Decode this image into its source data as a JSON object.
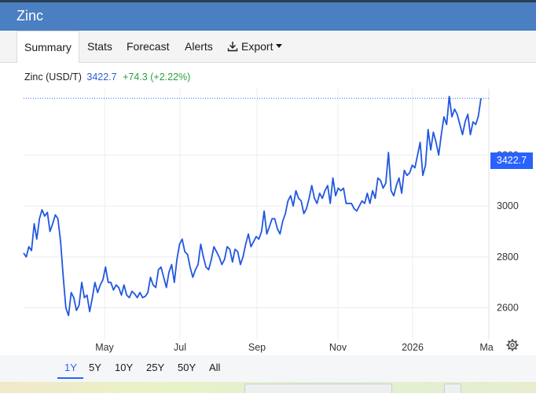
{
  "window": {
    "title": "Zinc"
  },
  "tabs": [
    {
      "label": "Summary",
      "active": true
    },
    {
      "label": "Stats"
    },
    {
      "label": "Forecast"
    },
    {
      "label": "Alerts"
    },
    {
      "label": "Export",
      "icon": "download-icon",
      "dropdown": true
    }
  ],
  "legend": {
    "name": "Zinc (USD/T)",
    "price": "3422.7",
    "change": "+74.3 (+2.22%)"
  },
  "price_tag": "3422.7",
  "range_buttons": [
    {
      "label": "1Y",
      "active": true
    },
    {
      "label": "5Y"
    },
    {
      "label": "10Y"
    },
    {
      "label": "25Y"
    },
    {
      "label": "50Y"
    },
    {
      "label": "All"
    }
  ],
  "colors": {
    "line": "#2157e0",
    "accent": "#2962ff",
    "title_bar": "#4a7fc1",
    "change_positive": "#2e9e3e"
  },
  "chart_data": {
    "type": "line",
    "xlabel": "",
    "ylabel": "",
    "yticks": [
      2600,
      2800,
      3000,
      3200
    ],
    "ylim": [
      2420,
      3460
    ],
    "x_ticks": [
      "May",
      "Jul",
      "Sep",
      "Nov",
      "2026",
      "Ma"
    ],
    "last_value": 3422.7,
    "grid": true,
    "values": [
      2815,
      2800,
      2840,
      2825,
      2930,
      2870,
      2950,
      2985,
      2960,
      2975,
      2900,
      2930,
      2965,
      2950,
      2860,
      2720,
      2600,
      2570,
      2660,
      2640,
      2590,
      2610,
      2700,
      2640,
      2650,
      2585,
      2640,
      2700,
      2660,
      2690,
      2710,
      2760,
      2700,
      2700,
      2670,
      2690,
      2680,
      2650,
      2690,
      2650,
      2640,
      2665,
      2655,
      2640,
      2660,
      2640,
      2645,
      2660,
      2720,
      2690,
      2680,
      2750,
      2760,
      2720,
      2680,
      2740,
      2770,
      2700,
      2790,
      2850,
      2870,
      2820,
      2810,
      2760,
      2720,
      2750,
      2770,
      2850,
      2800,
      2760,
      2750,
      2790,
      2840,
      2820,
      2800,
      2770,
      2790,
      2840,
      2830,
      2780,
      2830,
      2820,
      2770,
      2800,
      2850,
      2890,
      2840,
      2860,
      2880,
      2870,
      2900,
      2980,
      2890,
      2920,
      2950,
      2950,
      2910,
      2890,
      2940,
      2970,
      3020,
      3040,
      3000,
      3060,
      3030,
      3020,
      2970,
      2990,
      3030,
      3080,
      3030,
      3010,
      3050,
      3030,
      3060,
      3080,
      3010,
      3110,
      3040,
      3070,
      3060,
      3070,
      3010,
      3010,
      3010,
      2990,
      2980,
      3000,
      3020,
      3010,
      3050,
      3010,
      3060,
      3030,
      3110,
      3100,
      3070,
      3090,
      3210,
      3060,
      3040,
      3080,
      3110,
      3050,
      3140,
      3120,
      3130,
      3160,
      3150,
      3200,
      3250,
      3120,
      3160,
      3300,
      3220,
      3290,
      3250,
      3200,
      3280,
      3350,
      3320,
      3430,
      3350,
      3380,
      3360,
      3320,
      3280,
      3330,
      3360,
      3280,
      3330,
      3320,
      3352,
      3423
    ]
  }
}
